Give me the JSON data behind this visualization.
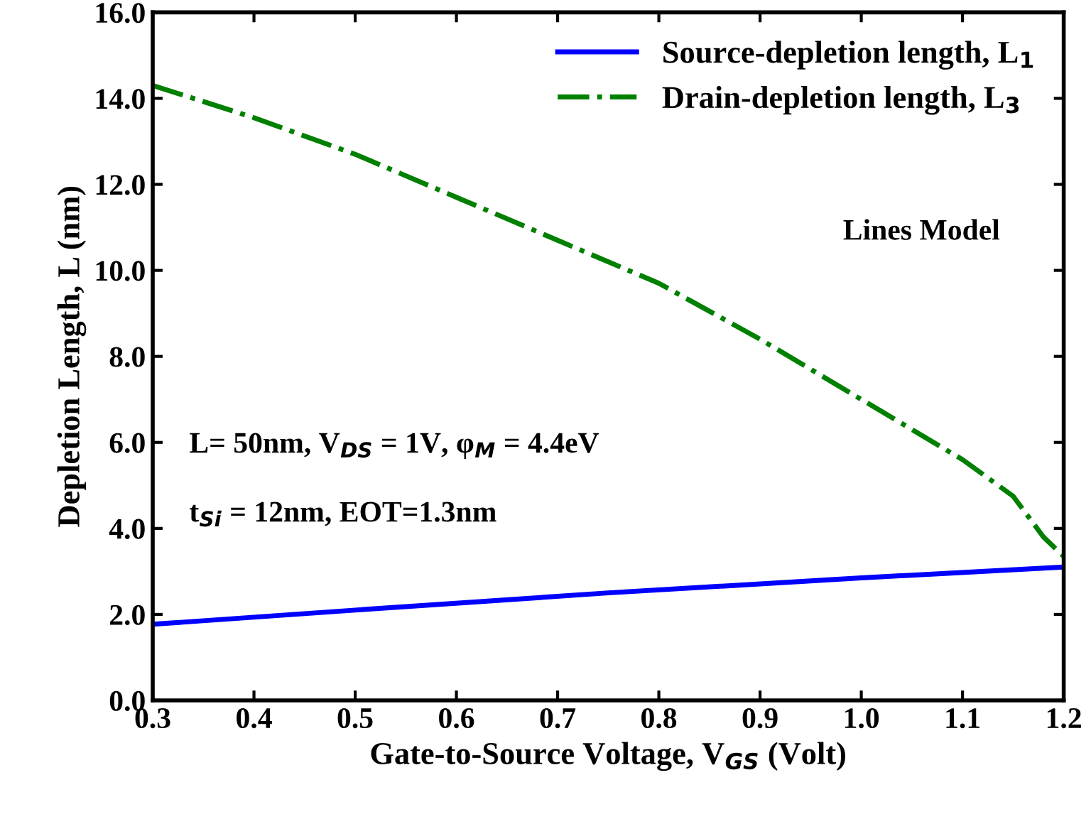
{
  "chart_data": {
    "type": "line",
    "xlabel": "Gate-to-Source Voltage, V$_{GS}$ (Volt)",
    "ylabel": "Depletion Length, L (nm)",
    "xlim": [
      0.3,
      1.2
    ],
    "ylim": [
      0,
      16
    ],
    "xticks": [
      0.3,
      0.4,
      0.5,
      0.6,
      0.7,
      0.8,
      0.9,
      {
        "value": 1.0,
        "label": "1.0"
      },
      1.1,
      1.2
    ],
    "yticks": [
      {
        "value": 0,
        "label": "0.0"
      },
      {
        "value": 2,
        "label": "2.0"
      },
      {
        "value": 4,
        "label": "4.0"
      },
      {
        "value": 6,
        "label": "6.0"
      },
      {
        "value": 8,
        "label": "8.0"
      },
      {
        "value": 10,
        "label": "10.0"
      },
      {
        "value": 12,
        "label": "12.0"
      },
      {
        "value": 14,
        "label": "14.0"
      },
      {
        "value": 16,
        "label": "16.0"
      }
    ],
    "grid": false,
    "legend": "top right",
    "annotations": [
      "Lines Model",
      "L= 50nm, V$_{DS}$ = 1V, φ$_{M}$ = 4.4eV",
      "t$_{Si}$ = 12nm, EOT=1.3nm"
    ],
    "series": [
      {
        "name": "Source-depletion length, L$_{1}$",
        "color": "#0000ff",
        "line_style": "solid",
        "x": [
          0.3,
          0.5,
          0.75,
          1.0,
          1.2
        ],
        "values": [
          1.77,
          2.1,
          2.5,
          2.85,
          3.1
        ]
      },
      {
        "name": "Drain-depletion length, L$_{3}$",
        "color": "#008000",
        "line_style": "dashdot",
        "x": [
          0.3,
          0.4,
          0.5,
          0.6,
          0.7,
          0.8,
          0.9,
          1.0,
          1.1,
          1.15,
          1.18,
          1.2
        ],
        "values": [
          14.3,
          13.55,
          12.7,
          11.7,
          10.7,
          9.7,
          8.4,
          7.0,
          5.6,
          4.75,
          3.8,
          3.35
        ]
      }
    ]
  }
}
